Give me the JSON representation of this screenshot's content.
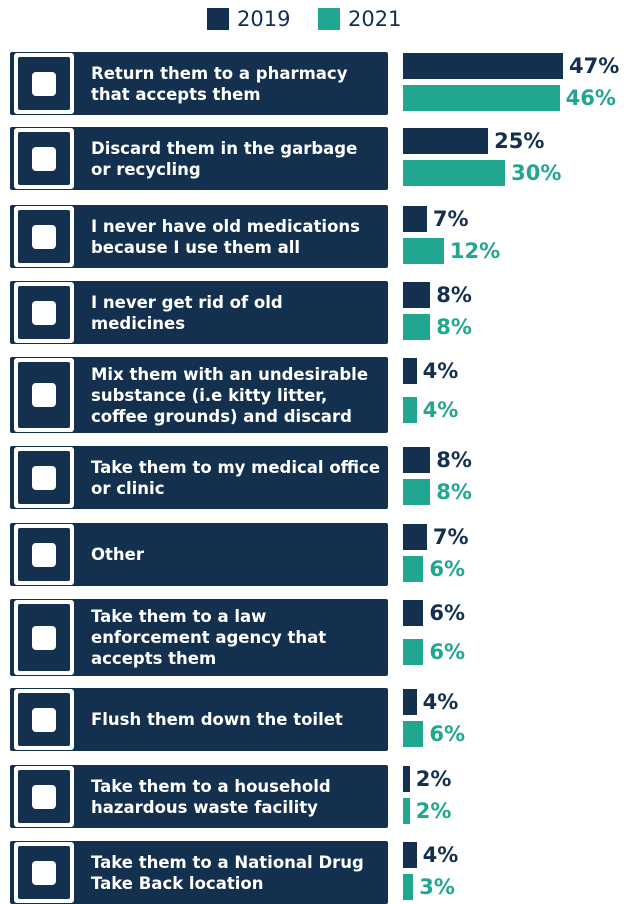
{
  "chart_data": {
    "type": "bar",
    "orientation": "horizontal",
    "categories": [
      "Return them to a pharmacy that accepts them",
      "Discard them in the garbage or recycling",
      "I never have old medications because I use them all",
      "I never get rid of old medicines",
      "Mix them with an undesirable substance (i.e kitty litter, coffee grounds) and discard",
      "Take them to my medical office or clinic",
      "Other",
      "Take them to a law enforcement agency that accepts them",
      "Flush them down the toilet",
      "Take them to a household hazardous waste facility",
      "Take them to a National Drug Take Back location"
    ],
    "series": [
      {
        "name": "2019",
        "color": "#13304f",
        "values": [
          47,
          25,
          7,
          8,
          4,
          8,
          7,
          6,
          4,
          2,
          4
        ],
        "value_labels": [
          "47%",
          "25%",
          "7%",
          "8%",
          "4%",
          "8%",
          "7%",
          "6%",
          "4%",
          "2%",
          "4%"
        ]
      },
      {
        "name": "2021",
        "color": "#21a790",
        "values": [
          46,
          30,
          12,
          8,
          4,
          8,
          6,
          6,
          6,
          2,
          3
        ],
        "value_labels": [
          "46%",
          "30%",
          "12%",
          "8%",
          "4%",
          "8%",
          "6%",
          "6%",
          "6%",
          "2%",
          "3%"
        ]
      }
    ]
  }
}
